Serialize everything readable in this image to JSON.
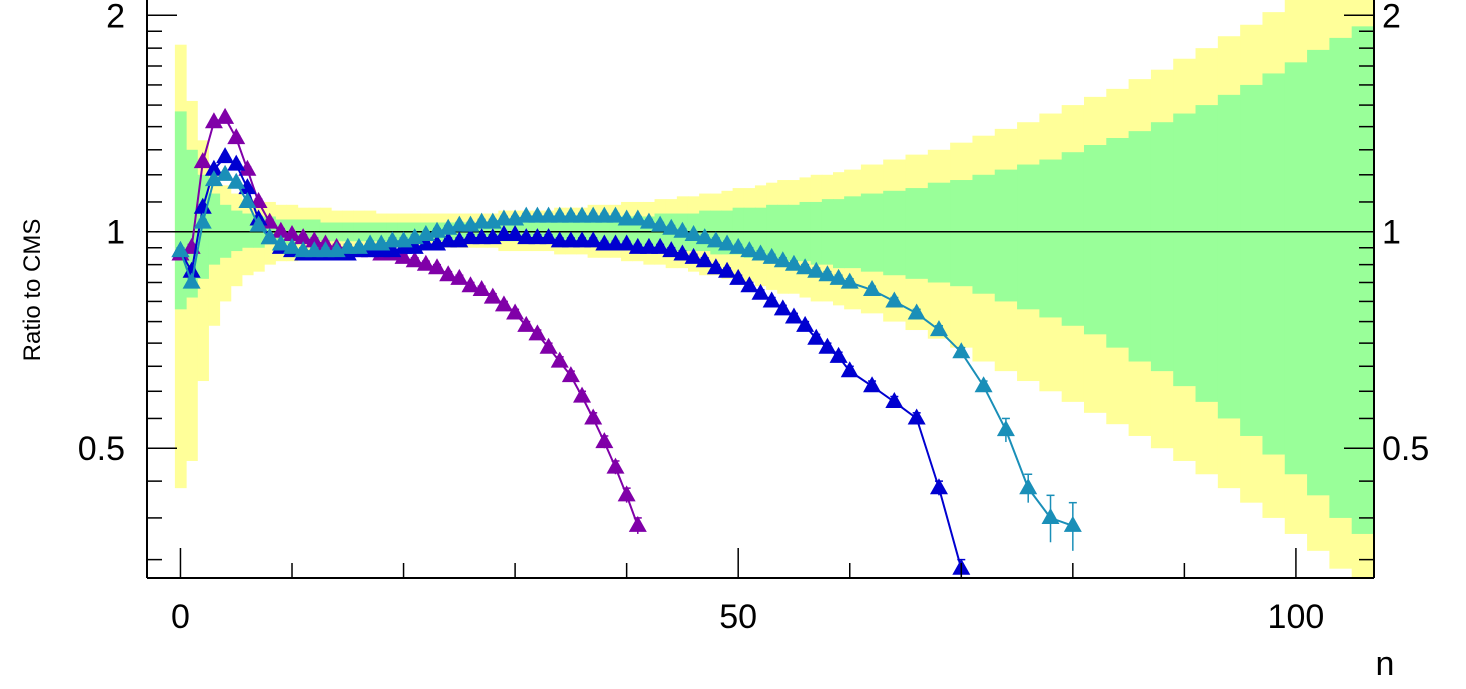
{
  "chart_data": {
    "type": "line",
    "xlabel": "n",
    "ylabel": "Ratio to CMS",
    "xlim": [
      -3,
      107
    ],
    "ylim": [
      0.33,
      2.1
    ],
    "y_scale": "log",
    "x_ticks": [
      0,
      50,
      100
    ],
    "x_tick_labels": [
      "0",
      "50",
      "100"
    ],
    "y_ticks": [
      0.5,
      1,
      2
    ],
    "y_tick_labels": [
      "0.5",
      "1",
      "2"
    ],
    "y_tick_labels_right": [
      "0.5",
      "1",
      "2"
    ],
    "reference_line": 1,
    "grid": false,
    "legend": "none",
    "bands": {
      "n": [
        0,
        1,
        2,
        3,
        4,
        5,
        6,
        7,
        8,
        9,
        10,
        11,
        12,
        13,
        14,
        15,
        16,
        17,
        18,
        19,
        20,
        21,
        22,
        23,
        24,
        25,
        26,
        27,
        28,
        29,
        30,
        31,
        32,
        33,
        34,
        35,
        36,
        37,
        38,
        39,
        40,
        41,
        42,
        43,
        44,
        45,
        46,
        47,
        48,
        49,
        50,
        51,
        52,
        53,
        54,
        55,
        56,
        57,
        58,
        59,
        60,
        62,
        64,
        66,
        68,
        70,
        72,
        74,
        76,
        78,
        80,
        82,
        84,
        86,
        88,
        90,
        92,
        94,
        96,
        98,
        100,
        102,
        104,
        106
      ],
      "outer_upper": [
        1.82,
        1.52,
        1.34,
        1.22,
        1.16,
        1.13,
        1.11,
        1.1,
        1.1,
        1.09,
        1.09,
        1.08,
        1.08,
        1.08,
        1.07,
        1.07,
        1.07,
        1.07,
        1.06,
        1.06,
        1.06,
        1.06,
        1.06,
        1.06,
        1.06,
        1.06,
        1.06,
        1.06,
        1.06,
        1.07,
        1.07,
        1.07,
        1.07,
        1.07,
        1.08,
        1.08,
        1.08,
        1.09,
        1.09,
        1.09,
        1.1,
        1.1,
        1.1,
        1.11,
        1.11,
        1.12,
        1.12,
        1.13,
        1.13,
        1.14,
        1.15,
        1.15,
        1.16,
        1.17,
        1.18,
        1.18,
        1.19,
        1.2,
        1.2,
        1.21,
        1.22,
        1.24,
        1.26,
        1.28,
        1.3,
        1.33,
        1.36,
        1.39,
        1.42,
        1.46,
        1.5,
        1.54,
        1.58,
        1.63,
        1.68,
        1.74,
        1.8,
        1.87,
        1.94,
        2.02,
        2.1,
        2.18,
        2.26,
        2.35
      ],
      "outer_lower": [
        0.44,
        0.48,
        0.62,
        0.74,
        0.8,
        0.84,
        0.87,
        0.88,
        0.9,
        0.91,
        0.91,
        0.92,
        0.93,
        0.93,
        0.94,
        0.94,
        0.94,
        0.94,
        0.94,
        0.95,
        0.95,
        0.95,
        0.95,
        0.95,
        0.95,
        0.95,
        0.95,
        0.95,
        0.95,
        0.94,
        0.94,
        0.94,
        0.94,
        0.94,
        0.93,
        0.93,
        0.93,
        0.92,
        0.92,
        0.92,
        0.91,
        0.91,
        0.9,
        0.9,
        0.89,
        0.89,
        0.88,
        0.87,
        0.87,
        0.86,
        0.85,
        0.85,
        0.84,
        0.83,
        0.82,
        0.82,
        0.81,
        0.8,
        0.8,
        0.79,
        0.78,
        0.77,
        0.75,
        0.73,
        0.71,
        0.69,
        0.66,
        0.64,
        0.62,
        0.6,
        0.58,
        0.56,
        0.54,
        0.52,
        0.5,
        0.48,
        0.46,
        0.44,
        0.42,
        0.4,
        0.38,
        0.36,
        0.34,
        0.33
      ],
      "inner_upper": [
        1.47,
        1.3,
        1.2,
        1.13,
        1.09,
        1.07,
        1.06,
        1.05,
        1.05,
        1.04,
        1.04,
        1.04,
        1.04,
        1.03,
        1.03,
        1.03,
        1.03,
        1.03,
        1.03,
        1.03,
        1.03,
        1.03,
        1.03,
        1.03,
        1.03,
        1.03,
        1.03,
        1.03,
        1.03,
        1.03,
        1.03,
        1.03,
        1.03,
        1.04,
        1.04,
        1.04,
        1.04,
        1.04,
        1.04,
        1.05,
        1.05,
        1.05,
        1.05,
        1.06,
        1.06,
        1.06,
        1.06,
        1.07,
        1.07,
        1.07,
        1.08,
        1.08,
        1.08,
        1.09,
        1.09,
        1.09,
        1.1,
        1.1,
        1.11,
        1.11,
        1.12,
        1.13,
        1.14,
        1.15,
        1.17,
        1.18,
        1.2,
        1.22,
        1.24,
        1.26,
        1.29,
        1.32,
        1.35,
        1.38,
        1.42,
        1.46,
        1.5,
        1.55,
        1.6,
        1.66,
        1.72,
        1.79,
        1.86,
        1.93
      ],
      "inner_lower": [
        0.78,
        0.81,
        0.86,
        0.9,
        0.92,
        0.94,
        0.95,
        0.95,
        0.96,
        0.96,
        0.96,
        0.97,
        0.97,
        0.97,
        0.97,
        0.97,
        0.97,
        0.97,
        0.97,
        0.97,
        0.97,
        0.97,
        0.97,
        0.97,
        0.97,
        0.97,
        0.97,
        0.97,
        0.97,
        0.97,
        0.97,
        0.97,
        0.97,
        0.97,
        0.96,
        0.96,
        0.96,
        0.96,
        0.96,
        0.96,
        0.95,
        0.95,
        0.95,
        0.95,
        0.94,
        0.94,
        0.94,
        0.94,
        0.93,
        0.93,
        0.93,
        0.92,
        0.92,
        0.92,
        0.91,
        0.91,
        0.91,
        0.9,
        0.9,
        0.89,
        0.89,
        0.88,
        0.87,
        0.86,
        0.85,
        0.84,
        0.82,
        0.8,
        0.78,
        0.76,
        0.74,
        0.72,
        0.69,
        0.66,
        0.64,
        0.61,
        0.58,
        0.55,
        0.52,
        0.49,
        0.46,
        0.43,
        0.4,
        0.38
      ],
      "outer_color": "#ffff99",
      "inner_color": "#99ff99"
    },
    "series": [
      {
        "color": "#8000a8",
        "x": [
          0,
          1,
          2,
          3,
          4,
          5,
          6,
          7,
          8,
          9,
          10,
          11,
          12,
          13,
          14,
          15,
          16,
          17,
          18,
          19,
          20,
          21,
          22,
          23,
          24,
          25,
          26,
          27,
          28,
          29,
          30,
          31,
          32,
          33,
          34,
          35,
          36,
          37,
          38,
          39,
          40,
          41
        ],
        "y": [
          0.93,
          0.95,
          1.25,
          1.42,
          1.44,
          1.35,
          1.22,
          1.1,
          1.03,
          1.0,
          0.99,
          0.98,
          0.97,
          0.96,
          0.95,
          0.95,
          0.94,
          0.94,
          0.93,
          0.93,
          0.92,
          0.91,
          0.9,
          0.89,
          0.87,
          0.86,
          0.84,
          0.83,
          0.81,
          0.79,
          0.77,
          0.74,
          0.72,
          0.69,
          0.66,
          0.63,
          0.59,
          0.55,
          0.51,
          0.47,
          0.43,
          0.39
        ],
        "err": [
          0.01,
          0.01,
          0.01,
          0.01,
          0.01,
          0.01,
          0.01,
          0.01,
          0.01,
          0.01,
          0.01,
          0.01,
          0.01,
          0.01,
          0.01,
          0.01,
          0.01,
          0.01,
          0.01,
          0.01,
          0.01,
          0.01,
          0.01,
          0.01,
          0.01,
          0.01,
          0.01,
          0.01,
          0.01,
          0.01,
          0.01,
          0.01,
          0.01,
          0.01,
          0.01,
          0.01,
          0.01,
          0.01,
          0.01,
          0.01,
          0.01,
          0.01
        ]
      },
      {
        "color": "#0000d0",
        "x": [
          0,
          1,
          2,
          3,
          4,
          5,
          6,
          7,
          8,
          9,
          10,
          11,
          12,
          13,
          14,
          15,
          16,
          17,
          18,
          19,
          20,
          21,
          22,
          23,
          24,
          25,
          26,
          27,
          28,
          29,
          30,
          31,
          32,
          33,
          34,
          35,
          36,
          37,
          38,
          39,
          40,
          41,
          42,
          43,
          44,
          45,
          46,
          47,
          48,
          49,
          50,
          51,
          52,
          53,
          54,
          55,
          56,
          57,
          58,
          59,
          60,
          62,
          64,
          66,
          68,
          70
        ],
        "y": [
          0.94,
          0.88,
          1.08,
          1.22,
          1.27,
          1.24,
          1.15,
          1.04,
          0.98,
          0.95,
          0.94,
          0.93,
          0.93,
          0.93,
          0.93,
          0.93,
          0.94,
          0.94,
          0.94,
          0.94,
          0.95,
          0.95,
          0.96,
          0.96,
          0.97,
          0.97,
          0.98,
          0.98,
          0.98,
          0.99,
          0.99,
          0.98,
          0.98,
          0.98,
          0.97,
          0.97,
          0.97,
          0.97,
          0.96,
          0.96,
          0.96,
          0.95,
          0.95,
          0.95,
          0.94,
          0.93,
          0.92,
          0.91,
          0.89,
          0.88,
          0.86,
          0.84,
          0.82,
          0.8,
          0.78,
          0.76,
          0.74,
          0.71,
          0.69,
          0.67,
          0.64,
          0.61,
          0.58,
          0.55,
          0.44,
          0.34
        ],
        "err": [
          0.01,
          0.01,
          0.01,
          0.01,
          0.01,
          0.01,
          0.01,
          0.01,
          0.01,
          0.01,
          0.01,
          0.01,
          0.01,
          0.01,
          0.01,
          0.01,
          0.01,
          0.01,
          0.01,
          0.01,
          0.01,
          0.01,
          0.01,
          0.01,
          0.01,
          0.01,
          0.01,
          0.01,
          0.01,
          0.01,
          0.01,
          0.01,
          0.01,
          0.01,
          0.01,
          0.01,
          0.01,
          0.01,
          0.01,
          0.01,
          0.01,
          0.01,
          0.01,
          0.01,
          0.01,
          0.01,
          0.01,
          0.01,
          0.01,
          0.01,
          0.01,
          0.01,
          0.01,
          0.01,
          0.01,
          0.01,
          0.01,
          0.01,
          0.01,
          0.01,
          0.01,
          0.01,
          0.01,
          0.01,
          0.01,
          0.01
        ]
      },
      {
        "color": "#1a8fb8",
        "x": [
          0,
          1,
          2,
          3,
          4,
          5,
          6,
          7,
          8,
          9,
          10,
          11,
          12,
          13,
          14,
          15,
          16,
          17,
          18,
          19,
          20,
          21,
          22,
          23,
          24,
          25,
          26,
          27,
          28,
          29,
          30,
          31,
          32,
          33,
          34,
          35,
          36,
          37,
          38,
          39,
          40,
          41,
          42,
          43,
          44,
          45,
          46,
          47,
          48,
          49,
          50,
          51,
          52,
          53,
          54,
          55,
          56,
          57,
          58,
          59,
          60,
          62,
          64,
          66,
          68,
          70,
          72,
          74,
          76,
          78,
          80
        ],
        "y": [
          0.94,
          0.85,
          1.03,
          1.18,
          1.2,
          1.17,
          1.1,
          1.02,
          0.98,
          0.96,
          0.95,
          0.94,
          0.94,
          0.94,
          0.94,
          0.95,
          0.95,
          0.96,
          0.96,
          0.97,
          0.97,
          0.98,
          0.99,
          1.0,
          1.01,
          1.02,
          1.02,
          1.03,
          1.03,
          1.04,
          1.04,
          1.05,
          1.05,
          1.05,
          1.05,
          1.05,
          1.05,
          1.05,
          1.05,
          1.05,
          1.04,
          1.04,
          1.03,
          1.02,
          1.01,
          1.0,
          0.99,
          0.98,
          0.97,
          0.96,
          0.95,
          0.94,
          0.93,
          0.92,
          0.91,
          0.9,
          0.89,
          0.88,
          0.87,
          0.86,
          0.85,
          0.83,
          0.8,
          0.77,
          0.73,
          0.68,
          0.61,
          0.53,
          0.44,
          0.4,
          0.39
        ],
        "err": [
          0.01,
          0.01,
          0.01,
          0.01,
          0.01,
          0.01,
          0.01,
          0.01,
          0.01,
          0.01,
          0.01,
          0.01,
          0.01,
          0.01,
          0.01,
          0.01,
          0.01,
          0.01,
          0.01,
          0.01,
          0.01,
          0.01,
          0.01,
          0.01,
          0.01,
          0.01,
          0.01,
          0.01,
          0.01,
          0.01,
          0.01,
          0.01,
          0.01,
          0.01,
          0.01,
          0.01,
          0.01,
          0.01,
          0.01,
          0.01,
          0.01,
          0.01,
          0.01,
          0.01,
          0.01,
          0.01,
          0.01,
          0.01,
          0.01,
          0.01,
          0.01,
          0.01,
          0.01,
          0.01,
          0.01,
          0.01,
          0.01,
          0.01,
          0.01,
          0.01,
          0.01,
          0.01,
          0.01,
          0.01,
          0.01,
          0.01,
          0.01,
          0.02,
          0.02,
          0.03,
          0.03
        ]
      }
    ]
  }
}
